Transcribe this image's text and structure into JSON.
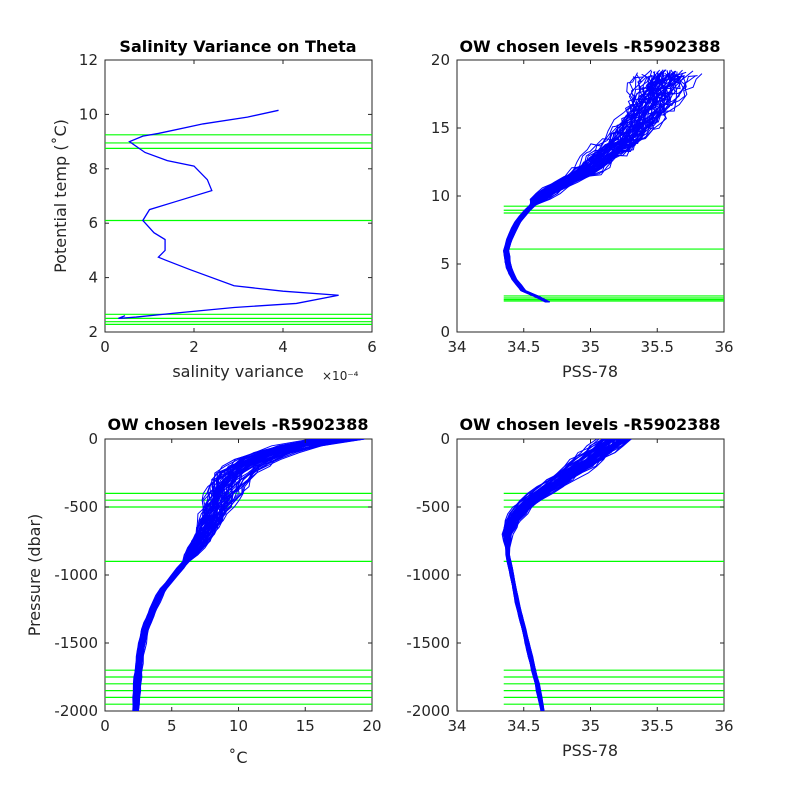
{
  "colors": {
    "profile": "#0000ff",
    "level": "#00ff00",
    "axis": "#262626"
  },
  "chart_data": [
    {
      "type": "line",
      "title": "Salinity Variance on Theta",
      "xlabel": "salinity variance",
      "x_exponent": "×10⁻⁴",
      "ylabel": "Potential temp (˚C)",
      "xlim": [
        0,
        6
      ],
      "ylim": [
        2,
        12
      ],
      "xticks": [
        0,
        2,
        4,
        6
      ],
      "xticklabels": [
        "0",
        "2",
        "4",
        "6"
      ],
      "yticks": [
        2,
        4,
        6,
        8,
        10,
        12
      ],
      "yticklabels": [
        "2",
        "4",
        "6",
        "8",
        "10",
        "12"
      ],
      "series": [
        {
          "x": [
            3.9,
            3.2,
            2.2,
            1.2,
            0.85,
            0.55,
            0.9,
            1.4,
            2.0,
            2.3,
            2.4,
            1.6,
            1.0,
            0.85,
            1.1,
            1.35,
            1.35,
            1.2,
            1.35,
            1.9,
            2.9,
            4.0,
            5.25,
            4.3,
            2.9,
            1.6,
            0.7,
            0.3,
            0.45
          ],
          "y": [
            10.15,
            9.9,
            9.65,
            9.3,
            9.2,
            9.0,
            8.6,
            8.3,
            8.1,
            7.6,
            7.2,
            6.8,
            6.5,
            6.1,
            5.65,
            5.4,
            5.0,
            4.75,
            4.65,
            4.3,
            3.7,
            3.5,
            3.35,
            3.05,
            2.9,
            2.7,
            2.55,
            2.5,
            2.6
          ]
        }
      ],
      "levels": [
        9.25,
        8.95,
        8.75,
        6.1,
        2.65,
        2.5,
        2.38,
        2.28
      ]
    },
    {
      "type": "line",
      "title": "OW chosen levels -R5902388",
      "xlabel": "PSS-78",
      "ylabel": "",
      "xlim": [
        34,
        36
      ],
      "ylim": [
        0,
        20
      ],
      "xticks": [
        34,
        34.5,
        35,
        35.5,
        36
      ],
      "xticklabels": [
        "34",
        "34.5",
        "35",
        "35.5",
        "36"
      ],
      "yticks": [
        0,
        5,
        10,
        15,
        20
      ],
      "yticklabels": [
        "0",
        "5",
        "10",
        "15",
        "20"
      ],
      "series": [
        {
          "x": [
            34.68,
            34.6,
            34.5,
            34.42,
            34.38,
            34.37,
            34.4,
            34.45,
            34.53,
            34.62,
            34.72,
            34.85,
            35.0,
            35.15,
            35.3,
            35.45,
            35.58
          ],
          "y": [
            2.2,
            2.6,
            3.0,
            4.0,
            5.0,
            6.0,
            7.0,
            8.0,
            9.0,
            9.8,
            10.5,
            11.2,
            12.0,
            13.2,
            14.5,
            16.5,
            19.0
          ]
        }
      ],
      "levels": [
        9.25,
        8.95,
        8.75,
        6.1,
        2.65,
        2.5,
        2.38,
        2.28
      ],
      "level_xrange": [
        34.35,
        36
      ]
    },
    {
      "type": "line",
      "title": "OW chosen levels -R5902388",
      "xlabel": "˚C",
      "ylabel": "Pressure (dbar)",
      "xlim": [
        0,
        20
      ],
      "ylim": [
        -2000,
        0
      ],
      "xticks": [
        0,
        5,
        10,
        15,
        20
      ],
      "xticklabels": [
        "0",
        "5",
        "10",
        "15",
        "20"
      ],
      "yticks": [
        -2000,
        -1500,
        -1000,
        -500,
        0
      ],
      "yticklabels": [
        "-2000",
        "-1500",
        "-1000",
        "-500",
        "0"
      ],
      "series": [
        {
          "x": [
            2.3,
            2.4,
            2.6,
            3.0,
            3.6,
            4.4,
            5.4,
            6.4,
            7.3,
            8.0,
            8.5,
            8.9,
            9.5,
            10.5,
            12.0,
            14.0,
            16.0,
            17.5
          ],
          "y": [
            -2000,
            -1800,
            -1600,
            -1400,
            -1250,
            -1100,
            -980,
            -860,
            -740,
            -600,
            -480,
            -380,
            -280,
            -200,
            -120,
            -60,
            -20,
            0
          ]
        }
      ],
      "levels": [
        -400,
        -450,
        -500,
        -900,
        -1700,
        -1750,
        -1800,
        -1850,
        -1900,
        -1950
      ],
      "level_xrange": [
        0,
        20
      ]
    },
    {
      "type": "line",
      "title": "OW chosen levels -R5902388",
      "xlabel": "PSS-78",
      "ylabel": "",
      "xlim": [
        34,
        36
      ],
      "ylim": [
        -2000,
        0
      ],
      "xticks": [
        34,
        34.5,
        35,
        35.5,
        36
      ],
      "xticklabels": [
        "34",
        "34.5",
        "35",
        "35.5",
        "36"
      ],
      "yticks": [
        -2000,
        -1500,
        -1000,
        -500,
        0
      ],
      "yticklabels": [
        "-2000",
        "-1500",
        "-1000",
        "-500",
        "0"
      ],
      "series": [
        {
          "x": [
            34.64,
            34.6,
            34.55,
            34.5,
            34.45,
            34.42,
            34.4,
            34.38,
            34.38,
            34.42,
            34.48,
            34.56,
            34.66,
            34.8,
            34.95,
            35.1,
            35.2
          ],
          "y": [
            -2000,
            -1800,
            -1600,
            -1400,
            -1200,
            -1050,
            -950,
            -850,
            -700,
            -600,
            -520,
            -450,
            -380,
            -280,
            -180,
            -80,
            0
          ]
        }
      ],
      "levels": [
        -400,
        -450,
        -500,
        -900,
        -1700,
        -1750,
        -1800,
        -1850,
        -1900,
        -1950
      ],
      "level_xrange": [
        34.35,
        36
      ]
    }
  ]
}
